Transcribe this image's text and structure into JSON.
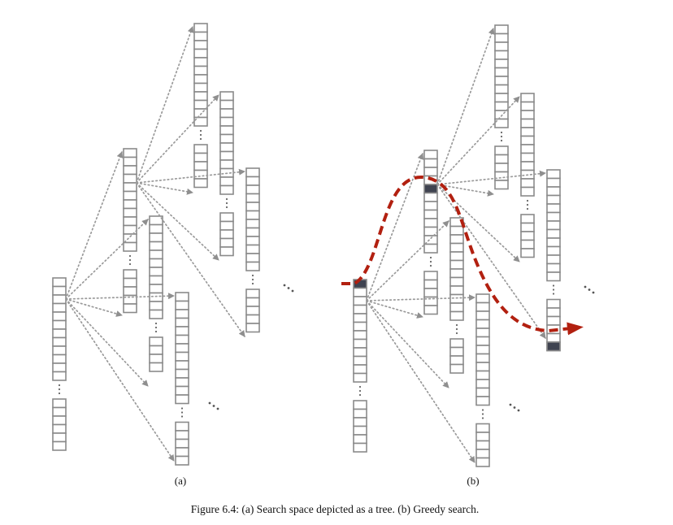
{
  "figure": {
    "panels": [
      {
        "label": "(a)"
      },
      {
        "label": "(b)"
      }
    ],
    "caption": "Figure 6.4: (a) Search space depicted as a tree. (b) Greedy search.",
    "colors": {
      "box_stroke": "#8a8a8a",
      "dotted_arrow": "#9a9a9a",
      "selected_cell": "#3f4350",
      "greedy_path": "#b22010"
    }
  }
}
